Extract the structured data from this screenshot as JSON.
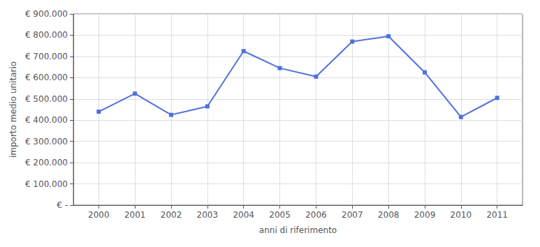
{
  "chart_data": {
    "type": "line",
    "xlabel": "anni di riferimento",
    "ylabel": "importo medio unitario",
    "x": [
      2000,
      2001,
      2002,
      2003,
      2004,
      2005,
      2006,
      2007,
      2008,
      2009,
      2010,
      2011
    ],
    "values": [
      440000,
      525000,
      425000,
      465000,
      725000,
      645000,
      605000,
      770000,
      795000,
      625000,
      415000,
      505000
    ],
    "xlim": [
      1999.3,
      2011.7
    ],
    "xticks": [
      2000,
      2001,
      2002,
      2003,
      2004,
      2005,
      2006,
      2007,
      2008,
      2009,
      2010,
      2011
    ],
    "ylim": [
      0,
      900000
    ],
    "yticks": [
      {
        "value": 0,
        "label": "€ -"
      },
      {
        "value": 100000,
        "label": "€ 100.000"
      },
      {
        "value": 200000,
        "label": "€ 200.000"
      },
      {
        "value": 300000,
        "label": "€ 300.000"
      },
      {
        "value": 400000,
        "label": "€ 400.000"
      },
      {
        "value": 500000,
        "label": "€ 500.000"
      },
      {
        "value": 600000,
        "label": "€ 600.000"
      },
      {
        "value": 700000,
        "label": "€ 700.000"
      },
      {
        "value": 800000,
        "label": "€ 800.000"
      },
      {
        "value": 900000,
        "label": "€ 900.000"
      }
    ],
    "grid": true,
    "marker": "square"
  }
}
